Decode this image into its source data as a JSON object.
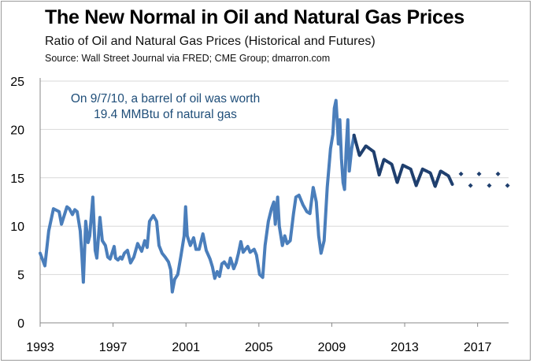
{
  "chart_data": {
    "type": "line",
    "title": "The New Normal in Oil and Natural Gas Prices",
    "subtitle": "Ratio of Oil and Natural Gas Prices (Historical and Futures)",
    "source": "Source: Wall Street Journal via FRED; CME Group; dmarron.com",
    "xlabel": "",
    "ylabel": "",
    "xlim": [
      1993,
      2018.7
    ],
    "ylim": [
      0,
      25
    ],
    "xticks": [
      "1993",
      "1997",
      "2001",
      "2005",
      "2009",
      "2013",
      "2017"
    ],
    "yticks": [
      "0",
      "5",
      "10",
      "15",
      "20",
      "25"
    ],
    "grid": "horizontal",
    "annotation": [
      "On 9/7/10, a barrel of oil was worth",
      "19.4 MMBtu of natural gas"
    ],
    "colors": {
      "historical": "#4a7ebb",
      "futures": "#1f3f6e",
      "grid": "#d9d9d9",
      "annotation": "#1f4e79"
    },
    "series": [
      {
        "style": "line",
        "x": [
          1993.0,
          1993.26,
          1993.47,
          1993.73,
          1994.04,
          1994.17,
          1994.47,
          1994.6,
          1994.77,
          1994.9,
          1995.03,
          1995.2,
          1995.29,
          1995.37,
          1995.5,
          1995.63,
          1995.72,
          1995.89,
          1996.02,
          1996.11,
          1996.28,
          1996.41,
          1996.58,
          1996.71,
          1996.84,
          1997.06,
          1997.14,
          1997.27,
          1997.4,
          1997.49,
          1997.62,
          1997.79,
          1997.96,
          1998.14,
          1998.35,
          1998.57,
          1998.74,
          1998.87,
          1999.0,
          1999.21,
          1999.39,
          1999.52,
          1999.69,
          1999.86,
          2000.04,
          2000.16,
          2000.25,
          2000.38,
          2000.55,
          2000.73,
          2000.9,
          2000.98,
          2001.07,
          2001.24,
          2001.42,
          2001.55,
          2001.72,
          2001.93,
          2002.11,
          2002.32,
          2002.45,
          2002.58,
          2002.71,
          2002.84,
          2002.97,
          2003.1,
          2003.32,
          2003.44,
          2003.62,
          2003.75,
          2003.88,
          2004.01,
          2004.14,
          2004.26,
          2004.39,
          2004.52,
          2004.74,
          2004.87,
          2005.04,
          2005.21,
          2005.34,
          2005.52,
          2005.69,
          2005.82,
          2005.9,
          2006.03,
          2006.12,
          2006.29,
          2006.42,
          2006.55,
          2006.72,
          2006.9,
          2007.03,
          2007.2,
          2007.42,
          2007.63,
          2007.8,
          2007.98,
          2008.15,
          2008.28,
          2008.41,
          2008.58,
          2008.75,
          2008.93,
          2009.06,
          2009.14,
          2009.23,
          2009.31,
          2009.36,
          2009.44,
          2009.53,
          2009.62,
          2009.7,
          2009.79,
          2009.88,
          2009.96,
          2010.09,
          2010.22
        ],
        "y": [
          7.2,
          5.9,
          9.5,
          11.8,
          11.5,
          10.2,
          12.0,
          11.8,
          11.2,
          11.7,
          11.5,
          9.5,
          7.0,
          4.2,
          10.5,
          8.3,
          9.0,
          13.0,
          7.5,
          6.7,
          10.9,
          8.5,
          8.0,
          6.8,
          6.6,
          7.9,
          6.7,
          6.5,
          6.8,
          6.6,
          7.2,
          7.5,
          6.2,
          6.8,
          8.2,
          7.4,
          8.5,
          7.8,
          10.5,
          11.1,
          10.5,
          8.0,
          7.2,
          6.8,
          6.3,
          5.5,
          3.2,
          4.5,
          5.0,
          7.0,
          9.0,
          12.0,
          9.0,
          8.0,
          8.8,
          7.6,
          7.6,
          9.2,
          7.5,
          6.6,
          5.8,
          4.6,
          5.3,
          4.8,
          6.1,
          6.3,
          5.7,
          6.7,
          5.6,
          6.2,
          7.2,
          8.4,
          7.3,
          7.6,
          7.9,
          7.3,
          7.6,
          7.0,
          5.0,
          4.7,
          8.0,
          10.5,
          11.8,
          12.5,
          10.2,
          13.0,
          10.0,
          8.0,
          9.0,
          8.2,
          8.5,
          11.3,
          13.0,
          13.2,
          12.2,
          11.5,
          11.3,
          14.0,
          12.5,
          9.0,
          7.2,
          8.5,
          14.0,
          18.0,
          19.5,
          22.2,
          23.0,
          20.5,
          18.5,
          21.0,
          17.0,
          14.5,
          13.8,
          18.0,
          21.0,
          15.7,
          18.0,
          19.4
        ]
      },
      {
        "style": "futures-line",
        "x": [
          2010.22,
          2010.52,
          2010.87,
          2011.3,
          2011.6,
          2011.86,
          2012.29,
          2012.59,
          2012.9,
          2013.33,
          2013.63,
          2013.98,
          2014.41,
          2014.67,
          2014.97,
          2015.4,
          2015.62
        ],
        "y": [
          19.4,
          17.3,
          18.3,
          17.7,
          15.3,
          16.9,
          16.4,
          14.5,
          16.3,
          15.9,
          14.2,
          15.9,
          15.5,
          14.1,
          15.7,
          15.2,
          14.3
        ]
      },
      {
        "style": "futures-markers",
        "x": [
          2016.09,
          2016.61,
          2017.08,
          2017.64,
          2018.12,
          2018.64
        ],
        "y": [
          15.4,
          14.2,
          15.4,
          14.2,
          15.4,
          14.2
        ]
      }
    ]
  }
}
